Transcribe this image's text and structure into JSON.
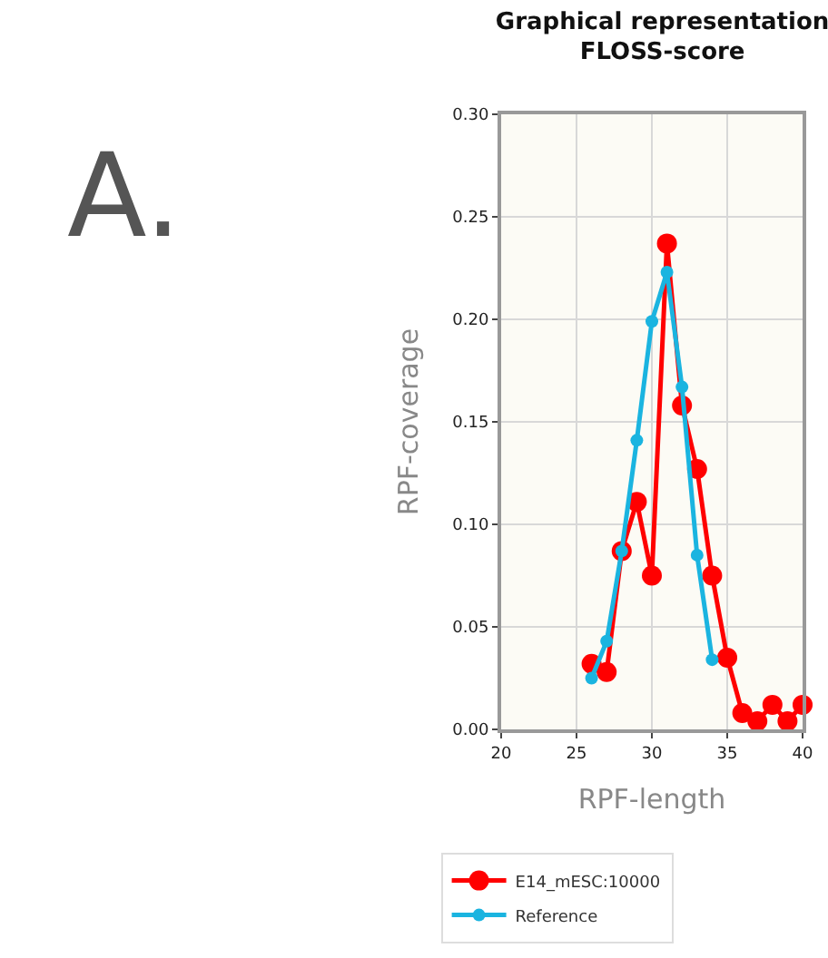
{
  "chart_data": {
    "type": "line",
    "title": "Graphical representation\nFLOSS-score",
    "xlabel": "RPF-length",
    "ylabel": "RPF-coverage",
    "annotations": [
      "A."
    ],
    "series": [
      {
        "name": "E14_mESC:10000",
        "color": "#ff0000",
        "x": [
          26,
          27,
          28,
          29,
          30,
          31,
          32,
          33,
          34,
          35,
          36,
          37,
          38,
          39,
          40
        ],
        "values": [
          0.032,
          0.028,
          0.087,
          0.111,
          0.075,
          0.237,
          0.158,
          0.127,
          0.075,
          0.035,
          0.008,
          0.004,
          0.012,
          0.004,
          0.012
        ]
      },
      {
        "name": "Reference",
        "color": "#1ab4e0",
        "x": [
          26,
          27,
          28,
          29,
          30,
          31,
          32,
          33,
          34
        ],
        "values": [
          0.025,
          0.043,
          0.087,
          0.141,
          0.199,
          0.223,
          0.167,
          0.085,
          0.034
        ]
      }
    ],
    "xlim": [
      20,
      40
    ],
    "xticks": [
      20,
      25,
      30,
      35,
      40
    ],
    "ylim": [
      0,
      0.3
    ],
    "yticks": [
      {
        "value": 0,
        "label": "0.00"
      },
      {
        "value": 0.05,
        "label": "0.05"
      },
      {
        "value": 0.1,
        "label": "0.10"
      },
      {
        "value": 0.15,
        "label": "0.15"
      },
      {
        "value": 0.2,
        "label": "0.20"
      },
      {
        "value": 0.25,
        "label": "0.25"
      },
      {
        "value": 0.3,
        "label": "0.30"
      }
    ],
    "grid": true,
    "legend": "bottom",
    "marker": "circle",
    "line_style": "solid"
  }
}
